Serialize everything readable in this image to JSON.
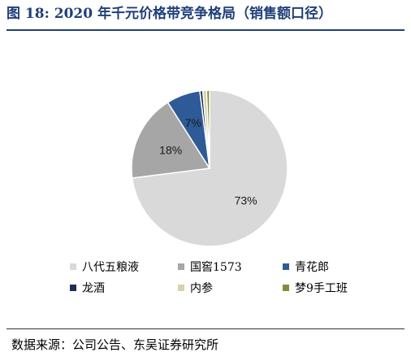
{
  "title": "图 18:  2020 年千元价格带竞争格局（销售额口径）",
  "source": "数据来源：公司公告、东吴证券研究所",
  "chart_data": {
    "type": "pie",
    "title": "图 18:  2020 年千元价格带竞争格局（销售额口径）",
    "legend_position": "bottom",
    "slices": [
      {
        "name": "八代五粮液",
        "value": 73,
        "label": "73%",
        "color": "#d9d9d9"
      },
      {
        "name": "国窖1573",
        "value": 18,
        "label": "18%",
        "color": "#a6a6a6"
      },
      {
        "name": "青花郎",
        "value": 7,
        "label": "7%",
        "color": "#2e5a97"
      },
      {
        "name": "龙酒",
        "value": 0.6,
        "label": "",
        "color": "#1a2f55"
      },
      {
        "name": "内参",
        "value": 0.8,
        "label": "",
        "color": "#d8d3a6"
      },
      {
        "name": "梦9手工班",
        "value": 0.6,
        "label": "",
        "color": "#8a8a3c"
      }
    ]
  }
}
